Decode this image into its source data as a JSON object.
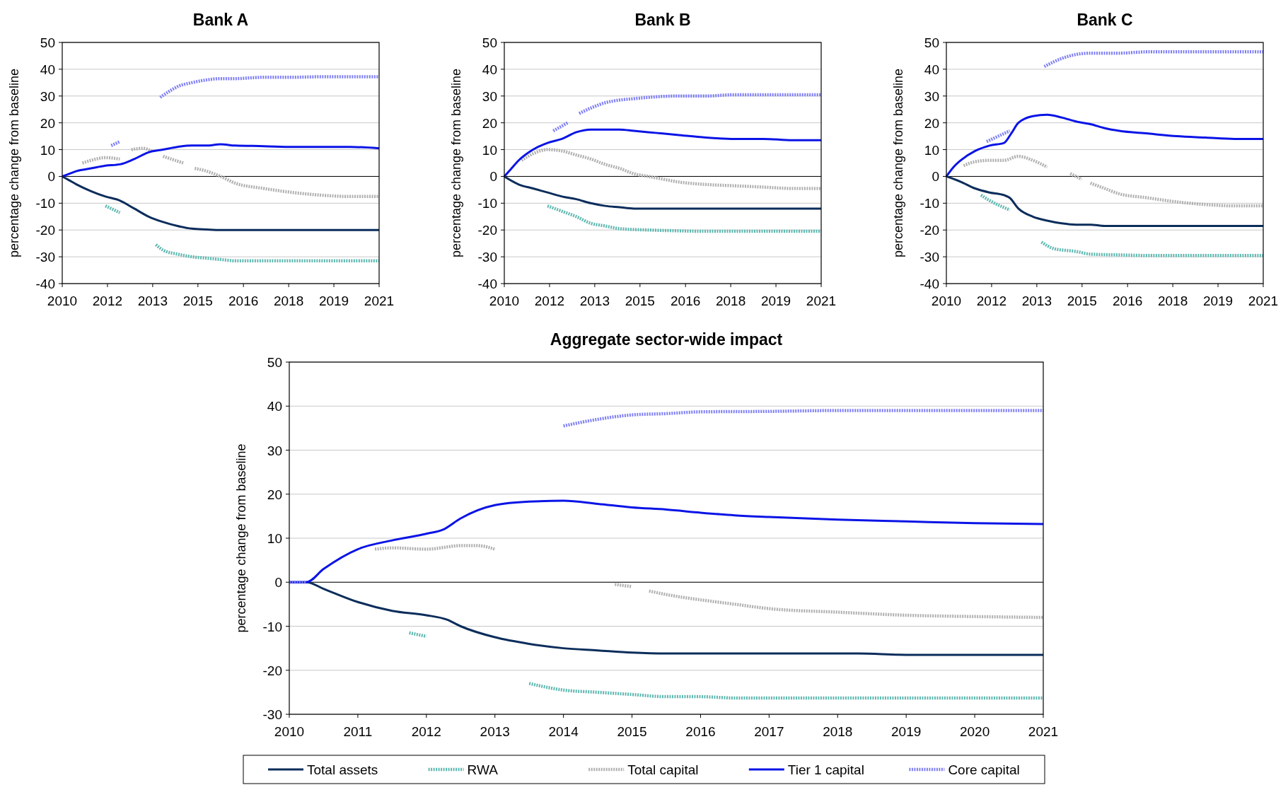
{
  "chart_data": [
    {
      "type": "line",
      "title": "Bank A",
      "ylabel": "percentage change from baseline",
      "xlim": [
        2010,
        2021
      ],
      "xticks": [
        2010,
        {
          "value": 2011.57,
          "label": "2012"
        },
        {
          "value": 2013.14,
          "label": "2013"
        },
        {
          "value": 2014.71,
          "label": "2015"
        },
        {
          "value": 2016.29,
          "label": "2016"
        },
        {
          "value": 2017.86,
          "label": "2018"
        },
        {
          "value": 2019.43,
          "label": "2019"
        },
        2021
      ],
      "ylim": [
        -40,
        50
      ],
      "yticks": [
        -40,
        -30,
        -20,
        -10,
        0,
        10,
        20,
        30,
        40,
        50
      ],
      "grid": "y",
      "series": [
        {
          "color": "#0b2d5b",
          "line_style": "solid",
          "x": [
            2010,
            2010.25,
            2010.5,
            2011,
            2011.5,
            2012,
            2012.5,
            2013,
            2013.5,
            2014,
            2014.5,
            2015,
            2015.5,
            2016,
            2017,
            2018,
            2019,
            2020,
            2021
          ],
          "values": [
            0,
            -1.5,
            -3,
            -5.5,
            -7.5,
            -9,
            -12,
            -15,
            -17,
            -18.5,
            -19.5,
            -19.8,
            -20,
            -20,
            -20,
            -20,
            -20,
            -20,
            -20
          ]
        },
        {
          "color": "#5fb8b0",
          "line_style": "dotted",
          "x": [
            2011.5,
            2012,
            2012.5,
            2013.25,
            2013.5,
            2014,
            2014.5,
            2015,
            2015.5,
            2016,
            2017,
            2018,
            2019,
            2020,
            2021
          ],
          "values": [
            -11,
            -13.5,
            null,
            -25.5,
            -27.5,
            -29,
            -30,
            -30.5,
            -31,
            -31.5,
            -31.5,
            -31.5,
            -31.5,
            -31.5,
            -31.5
          ]
        },
        {
          "color": "#b0b0b0",
          "line_style": "dotted",
          "x": [
            2010.7,
            2011,
            2011.5,
            2012,
            2012.2,
            2012.4,
            2012.8,
            2013.1,
            2013.3,
            2013.5,
            2014.2,
            2014.4,
            2014.6,
            2015,
            2015.5,
            2016,
            2017,
            2018,
            2019,
            2020,
            2021
          ],
          "values": [
            5,
            6,
            7,
            6.5,
            null,
            10,
            10.5,
            9.5,
            null,
            7.5,
            5,
            null,
            3,
            2,
            0,
            -2.5,
            -4.5,
            -6,
            -7,
            -7.5,
            -7.5
          ]
        },
        {
          "color": "#0a14e6",
          "line_style": "solid",
          "x": [
            2010,
            2010.25,
            2010.5,
            2011,
            2011.5,
            2012,
            2012.5,
            2013,
            2013.5,
            2014,
            2014.5,
            2015,
            2015.5,
            2016,
            2017,
            2018,
            2019,
            2020,
            2021
          ],
          "values": [
            0,
            1,
            2,
            3,
            4,
            4.5,
            6.5,
            9,
            10,
            11,
            11.5,
            11.5,
            12,
            11.5,
            11.3,
            11,
            11,
            11,
            10.5
          ]
        },
        {
          "color": "#7f7ff5",
          "line_style": "dotted",
          "x": [
            2011.7,
            2012,
            2012.5,
            2013.4,
            2013.75,
            2014,
            2014.5,
            2015,
            2015.5,
            2016,
            2017,
            2018,
            2019,
            2020,
            2021
          ],
          "values": [
            11.5,
            13,
            null,
            29.5,
            32,
            33.5,
            35,
            36,
            36.5,
            36.5,
            37,
            37,
            37.2,
            37.2,
            37.2
          ]
        }
      ]
    },
    {
      "type": "line",
      "title": "Bank B",
      "ylabel": "percentage change from baseline",
      "xlim": [
        2010,
        2021
      ],
      "xticks": [
        2010,
        {
          "value": 2011.57,
          "label": "2012"
        },
        {
          "value": 2013.14,
          "label": "2013"
        },
        {
          "value": 2014.71,
          "label": "2015"
        },
        {
          "value": 2016.29,
          "label": "2016"
        },
        {
          "value": 2017.86,
          "label": "2018"
        },
        {
          "value": 2019.43,
          "label": "2019"
        },
        2021
      ],
      "ylim": [
        -40,
        50
      ],
      "yticks": [
        -40,
        -30,
        -20,
        -10,
        0,
        10,
        20,
        30,
        40,
        50
      ],
      "grid": "y",
      "series": [
        {
          "color": "#0b2d5b",
          "line_style": "solid",
          "x": [
            2010,
            2010.5,
            2011,
            2011.5,
            2012,
            2012.5,
            2013,
            2013.5,
            2014,
            2014.5,
            2015,
            2016,
            2017,
            2018,
            2019,
            2020,
            2021
          ],
          "values": [
            0,
            -3,
            -4.5,
            -6,
            -7.5,
            -8.5,
            -10,
            -11,
            -11.5,
            -12,
            -12,
            -12,
            -12,
            -12,
            -12,
            -12,
            -12
          ]
        },
        {
          "color": "#5fb8b0",
          "line_style": "dotted",
          "x": [
            2011.5,
            2012,
            2012.5,
            2013,
            2013.5,
            2014,
            2015,
            2016,
            2017,
            2018,
            2019,
            2020,
            2021
          ],
          "values": [
            -11,
            -13,
            -15,
            -17.5,
            -18.5,
            -19.5,
            -20,
            -20.3,
            -20.5,
            -20.5,
            -20.5,
            -20.5,
            -20.5
          ]
        },
        {
          "color": "#b0b0b0",
          "line_style": "dotted",
          "x": [
            2010.6,
            2011,
            2011.5,
            2012,
            2012.5,
            2013,
            2013.5,
            2014,
            2014.5,
            2015,
            2015.5,
            2016,
            2017,
            2018,
            2019,
            2020,
            2021
          ],
          "values": [
            6,
            8.5,
            10,
            9.5,
            8,
            6.5,
            4.5,
            3,
            1,
            0,
            -1,
            -2,
            -3,
            -3.5,
            -4,
            -4.5,
            -4.5
          ]
        },
        {
          "color": "#0a14e6",
          "line_style": "solid",
          "x": [
            2010,
            2010.25,
            2010.5,
            2011,
            2011.5,
            2012,
            2012.5,
            2013,
            2013.5,
            2014,
            2014.5,
            2015,
            2015.5,
            2016,
            2017,
            2018,
            2019,
            2020,
            2021
          ],
          "values": [
            0,
            3,
            6,
            10,
            12.5,
            14,
            16.5,
            17.5,
            17.5,
            17.5,
            17,
            16.5,
            16,
            15.5,
            14.5,
            14,
            14,
            13.5,
            13.5
          ]
        },
        {
          "color": "#7f7ff5",
          "line_style": "dotted",
          "x": [
            2011.7,
            2012.2,
            2012.4,
            2012.6,
            2013,
            2013.5,
            2014,
            2014.5,
            2015,
            2016,
            2017,
            2018,
            2019,
            2020,
            2021
          ],
          "values": [
            17,
            20,
            null,
            23.5,
            25.5,
            27.5,
            28.5,
            29,
            29.5,
            30,
            30,
            30.5,
            30.5,
            30.5,
            30.5
          ]
        }
      ]
    },
    {
      "type": "line",
      "title": "Bank C",
      "ylabel": "percentage change from baseline",
      "xlim": [
        2010,
        2021
      ],
      "xticks": [
        2010,
        {
          "value": 2011.57,
          "label": "2012"
        },
        {
          "value": 2013.14,
          "label": "2013"
        },
        {
          "value": 2014.71,
          "label": "2015"
        },
        {
          "value": 2016.29,
          "label": "2016"
        },
        {
          "value": 2017.86,
          "label": "2018"
        },
        {
          "value": 2019.43,
          "label": "2019"
        },
        2021
      ],
      "ylim": [
        -40,
        50
      ],
      "yticks": [
        -40,
        -30,
        -20,
        -10,
        0,
        10,
        20,
        30,
        40,
        50
      ],
      "grid": "y",
      "series": [
        {
          "color": "#0b2d5b",
          "line_style": "solid",
          "x": [
            2010,
            2010.5,
            2011,
            2011.5,
            2012,
            2012.2,
            2012.5,
            2013,
            2013.5,
            2014,
            2014.5,
            2015,
            2015.5,
            2016,
            2017,
            2018,
            2019,
            2020,
            2021
          ],
          "values": [
            0,
            -2,
            -4.5,
            -6,
            -7,
            -8,
            -12,
            -15,
            -16.5,
            -17.5,
            -18,
            -18,
            -18.5,
            -18.5,
            -18.5,
            -18.5,
            -18.5,
            -18.5,
            -18.5
          ]
        },
        {
          "color": "#5fb8b0",
          "line_style": "dotted",
          "x": [
            2011.2,
            2011.5,
            2012.2,
            2012.7,
            2013.3,
            2013.75,
            2014.5,
            2015,
            2016,
            2017,
            2018,
            2019,
            2020,
            2021
          ],
          "values": [
            -7,
            -9,
            -12.5,
            null,
            -24.5,
            -27,
            -28,
            -29,
            -29.3,
            -29.5,
            -29.5,
            -29.5,
            -29.5,
            -29.5
          ]
        },
        {
          "color": "#b0b0b0",
          "line_style": "dotted",
          "x": [
            2010.6,
            2011,
            2011.5,
            2012,
            2012.5,
            2013,
            2013.5,
            2013.9,
            2014.3,
            2014.7,
            2014.85,
            2015,
            2015.5,
            2016,
            2017,
            2018,
            2019,
            2020,
            2021
          ],
          "values": [
            4,
            5.5,
            6,
            6,
            7.5,
            6,
            3.5,
            null,
            1,
            -1,
            null,
            -2.5,
            -4.5,
            -6.5,
            -8,
            -9.5,
            -10.5,
            -11,
            -11
          ]
        },
        {
          "color": "#0a14e6",
          "line_style": "solid",
          "x": [
            2010,
            2010.25,
            2010.5,
            2011,
            2011.5,
            2012,
            2012.25,
            2012.5,
            2013,
            2013.5,
            2014,
            2014.5,
            2015,
            2015.5,
            2016,
            2017,
            2018,
            2019,
            2020,
            2021
          ],
          "values": [
            0,
            3.5,
            6,
            9.5,
            11.5,
            12.5,
            16,
            20,
            22.5,
            23,
            22,
            20.5,
            19.5,
            18,
            17,
            16,
            15,
            14.5,
            14,
            14
          ]
        },
        {
          "color": "#7f7ff5",
          "line_style": "dotted",
          "x": [
            2011.4,
            2012.2,
            2012.8,
            2013.4,
            2014,
            2014.5,
            2015,
            2016,
            2017,
            2018,
            2019,
            2020,
            2021
          ],
          "values": [
            13,
            17,
            null,
            41,
            44,
            45.5,
            46,
            46,
            46.5,
            46.5,
            46.5,
            46.5,
            46.5
          ]
        }
      ]
    },
    {
      "type": "line",
      "title": "Aggregate sector-wide impact",
      "ylabel": "percentage change from baseline",
      "xlim": [
        2010,
        2021
      ],
      "xticks": [
        2010,
        2011,
        2012,
        2013,
        2014,
        2015,
        2016,
        2017,
        2018,
        2019,
        2020,
        2021
      ],
      "ylim": [
        -30,
        50
      ],
      "yticks": [
        -30,
        -20,
        -10,
        0,
        10,
        20,
        30,
        40,
        50
      ],
      "grid": "y",
      "legend": "bottom",
      "series": [
        {
          "name": "Total assets",
          "color": "#0b2d5b",
          "line_style": "solid",
          "x": [
            2010,
            2010.25,
            2010.5,
            2011,
            2011.5,
            2012,
            2012.3,
            2012.5,
            2013,
            2013.5,
            2014,
            2014.5,
            2015,
            2015.5,
            2016,
            2017,
            2018,
            2018.3,
            2019,
            2020,
            2021
          ],
          "values": [
            0,
            0,
            -1.5,
            -4.5,
            -6.5,
            -7.5,
            -8.5,
            -10,
            -12.5,
            -14,
            -15,
            -15.5,
            -16,
            -16.2,
            -16.2,
            -16.2,
            -16.2,
            -16.2,
            -16.5,
            -16.5,
            -16.5
          ]
        },
        {
          "name": "RWA",
          "color": "#5fb8b0",
          "line_style": "dotted",
          "x": [
            2011.75,
            2012,
            2012.8,
            2013.5,
            2014,
            2014.5,
            2015,
            2015.5,
            2016,
            2016.5,
            2017,
            2018,
            2019,
            2020,
            2021
          ],
          "values": [
            -11.5,
            -12.3,
            null,
            -23,
            -24.5,
            -25,
            -25.5,
            -26,
            -26,
            -26.3,
            -26.3,
            -26.3,
            -26.3,
            -26.3,
            -26.3
          ]
        },
        {
          "name": "Total capital",
          "color": "#b0b0b0",
          "line_style": "dotted",
          "x": [
            2011.25,
            2011.5,
            2012,
            2012.5,
            2012.75,
            2013,
            2014,
            2014.75,
            2015,
            2015.1,
            2015.25,
            2015.5,
            2016,
            2016.5,
            2017,
            2018,
            2019,
            2020,
            2021
          ],
          "values": [
            7.5,
            7.8,
            7.5,
            8.3,
            8.3,
            7.5,
            null,
            -0.5,
            -1,
            null,
            -2,
            -2.8,
            -4,
            -5,
            -6,
            -6.8,
            -7.5,
            -7.8,
            -8
          ]
        },
        {
          "name": "Tier 1 capital",
          "color": "#0a14e6",
          "line_style": "solid",
          "x": [
            2010,
            2010.25,
            2010.5,
            2011,
            2011.5,
            2012,
            2012.25,
            2012.5,
            2013,
            2013.5,
            2014,
            2014.5,
            2015,
            2015.5,
            2016,
            2016.5,
            2017,
            2018,
            2019,
            2020,
            2021
          ],
          "values": [
            0,
            0,
            3,
            7.5,
            9.5,
            11,
            12,
            14.5,
            17.5,
            18.3,
            18.5,
            17.8,
            17,
            16.5,
            15.8,
            15.2,
            14.8,
            14.2,
            13.8,
            13.4,
            13.2
          ]
        },
        {
          "name": "Core capital",
          "color": "#7f7ff5",
          "line_style": "dotted",
          "x": [
            2010,
            2010.25,
            2012,
            2014,
            2014.5,
            2015,
            2015.5,
            2016,
            2017,
            2018,
            2019,
            2020,
            2021
          ],
          "values": [
            0,
            0,
            null,
            35.5,
            37,
            38,
            38.3,
            38.7,
            38.8,
            39,
            39,
            39,
            39
          ]
        }
      ]
    }
  ]
}
